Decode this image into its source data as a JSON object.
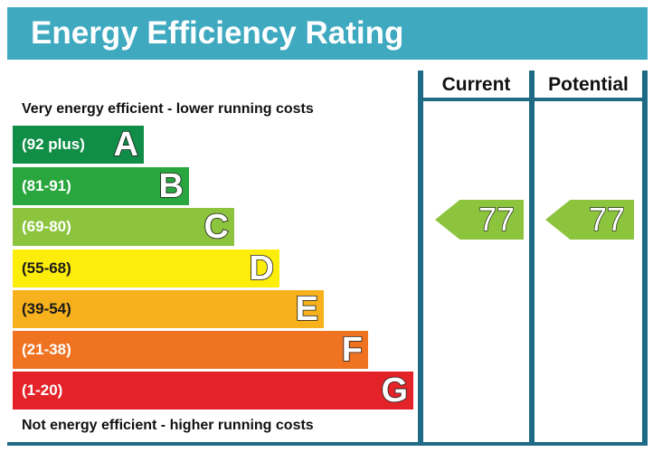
{
  "title": "Energy Efficiency Rating",
  "captions": {
    "top": "Very energy efficient - lower running costs",
    "bottom": "Not energy efficient - higher running costs"
  },
  "columns": {
    "current": "Current",
    "potential": "Potential"
  },
  "bands": [
    {
      "range": "(92 plus)",
      "letter": "A",
      "color": "#108d46"
    },
    {
      "range": "(81-91)",
      "letter": "B",
      "color": "#29a63e"
    },
    {
      "range": "(69-80)",
      "letter": "C",
      "color": "#8cc43e"
    },
    {
      "range": "(55-68)",
      "letter": "D",
      "color": "#fced0b"
    },
    {
      "range": "(39-54)",
      "letter": "E",
      "color": "#f6b11c"
    },
    {
      "range": "(21-38)",
      "letter": "F",
      "color": "#ef7321"
    },
    {
      "range": "(1-20)",
      "letter": "G",
      "color": "#e42329"
    }
  ],
  "ratings": {
    "current": {
      "value": "77",
      "band": "C",
      "color": "#8cc43e"
    },
    "potential": {
      "value": "77",
      "band": "C",
      "color": "#8cc43e"
    }
  },
  "colors": {
    "header": "#3fa9c0",
    "grid": "#1f6a84"
  }
}
